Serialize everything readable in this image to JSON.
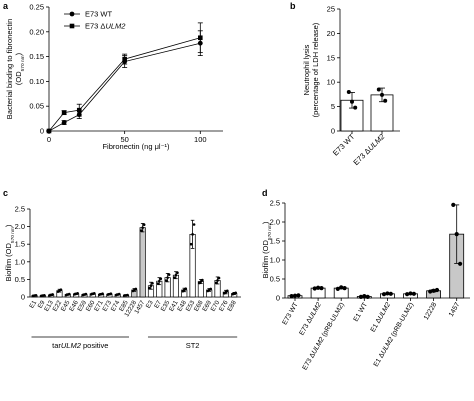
{
  "figure": {
    "panel_letters": [
      "a",
      "b",
      "c",
      "d"
    ]
  },
  "colors": {
    "ink": "#000000",
    "white_bar": "#ffffff",
    "grey_bar": "#c8c8c8"
  },
  "chart_data": [
    {
      "panel": "a",
      "type": "line",
      "xlabel": "Fibronectin (ng μl⁻¹)",
      "ylabel_line1": "Bacterial binding to fibronectin",
      "ylabel_line2": "(OD",
      "ylabel_sub": "570 nm",
      "ylabel_close": ")",
      "xlim": [
        0,
        115
      ],
      "ylim": [
        0,
        0.25
      ],
      "xticks": [
        0,
        50,
        100
      ],
      "yticks": [
        0,
        0.05,
        0.1,
        0.15,
        0.2,
        0.25
      ],
      "ytick_labels": [
        "0",
        "0.05",
        "0.10",
        "0.15",
        "0.20",
        "0.25"
      ],
      "legend_position": "top-left",
      "series": [
        {
          "name": "E73 WT",
          "marker": "circle",
          "x": [
            0,
            10,
            20,
            50,
            100
          ],
          "y": [
            0.0,
            0.017,
            0.033,
            0.14,
            0.177
          ],
          "err": [
            0.0,
            0.004,
            0.008,
            0.012,
            0.025
          ]
        },
        {
          "name": "E73 ΔULM2",
          "name_prefix": "E73 Δ",
          "name_italic": "ULM2",
          "marker": "square",
          "x": [
            0,
            10,
            20,
            50,
            100
          ],
          "y": [
            0.0,
            0.037,
            0.042,
            0.145,
            0.188
          ],
          "err": [
            0.0,
            0.004,
            0.012,
            0.01,
            0.03
          ]
        }
      ]
    },
    {
      "panel": "b",
      "type": "bar",
      "ylabel_line1": "Neutrophil lysis",
      "ylabel_line2": "(percentage of LDH release)",
      "ylim": [
        0,
        25
      ],
      "yticks": [
        0,
        5,
        10,
        15,
        20,
        25
      ],
      "categories": [
        {
          "label": "E73 WT",
          "prefix": "E73 WT",
          "italic": ""
        },
        {
          "label": "E73 ΔULM2",
          "prefix": "E73 Δ",
          "italic": "ULM2"
        }
      ],
      "values": [
        6.3,
        7.4
      ],
      "err": [
        1.6,
        1.4
      ],
      "points": [
        [
          8.0,
          6.0,
          4.8
        ],
        [
          8.5,
          7.4,
          6.2
        ]
      ]
    },
    {
      "panel": "c",
      "type": "bar",
      "ylabel": "Biofilm (OD",
      "ylabel_sub": "570 nm",
      "ylabel_close": ")",
      "ylim": [
        0,
        2.5
      ],
      "yticks": [
        0,
        0.5,
        1,
        1.5,
        2,
        2.5
      ],
      "ytick_labels": [
        "0",
        "0.5",
        "1.0",
        "1.5",
        "2.0",
        "2.5"
      ],
      "categories": [
        "E1",
        "E9",
        "E13",
        "E22",
        "E45",
        "E46",
        "E59",
        "E60",
        "E71",
        "E73",
        "E74",
        "E85",
        "12228",
        "1457",
        "E3",
        "E7",
        "E35",
        "E41",
        "E48",
        "E53",
        "E68",
        "E69",
        "E70",
        "E76",
        "E88"
      ],
      "values": [
        0.04,
        0.04,
        0.06,
        0.18,
        0.07,
        0.09,
        0.07,
        0.09,
        0.08,
        0.08,
        0.07,
        0.05,
        0.2,
        1.97,
        0.32,
        0.45,
        0.55,
        0.62,
        0.2,
        1.78,
        0.44,
        0.2,
        0.47,
        0.14,
        0.1
      ],
      "err": [
        0.01,
        0.01,
        0.02,
        0.04,
        0.02,
        0.02,
        0.02,
        0.02,
        0.02,
        0.02,
        0.02,
        0.01,
        0.04,
        0.12,
        0.1,
        0.1,
        0.12,
        0.1,
        0.05,
        0.4,
        0.06,
        0.04,
        0.1,
        0.05,
        0.03
      ],
      "grey_bars": [
        "12228",
        "1457"
      ],
      "groups": [
        {
          "label_prefix": "tar",
          "label_italic": "ULM2",
          "label_suffix": " positive",
          "from": 0,
          "to": 11
        },
        {
          "label_prefix": "ST2",
          "label_italic": "",
          "label_suffix": "",
          "from": 14,
          "to": 24
        }
      ]
    },
    {
      "panel": "d",
      "type": "bar",
      "ylabel": "Biofilm (OD",
      "ylabel_sub": "570 nm",
      "ylabel_close": ")",
      "ylim": [
        0,
        2.5
      ],
      "yticks": [
        0,
        0.5,
        1,
        1.5,
        2,
        2.5
      ],
      "ytick_labels": [
        "0",
        "0.5",
        "1.0",
        "1.5",
        "2.0",
        "2.5"
      ],
      "categories": [
        {
          "label": "E73 WT",
          "prefix": "E73 WT",
          "italic": "",
          "suffix": ""
        },
        {
          "label": "E73 ΔULM2",
          "prefix": "E73 Δ",
          "italic": "ULM2",
          "suffix": ""
        },
        {
          "label": "E73 ΔULM2 (pRB-ULM2)",
          "prefix": "E73 Δ",
          "italic": "ULM2",
          "suffix": " (pRB-ULM2)"
        },
        {
          "label": "E1 WT",
          "prefix": "E1 WT",
          "italic": "",
          "suffix": ""
        },
        {
          "label": "E1 ΔULM2",
          "prefix": "E1 Δ",
          "italic": "ULM2",
          "suffix": ""
        },
        {
          "label": "E1 ΔULM2 (pRB-ULM2)",
          "prefix": "E1 Δ",
          "italic": "ULM2",
          "suffix": " (pRB-ULM2)"
        },
        {
          "label": "12228",
          "prefix": "12228",
          "italic": "",
          "suffix": ""
        },
        {
          "label": "1457",
          "prefix": "1457",
          "italic": "",
          "suffix": ""
        }
      ],
      "values": [
        0.06,
        0.26,
        0.26,
        0.04,
        0.11,
        0.11,
        0.19,
        1.68
      ],
      "err": [
        0.01,
        0.02,
        0.02,
        0.01,
        0.01,
        0.01,
        0.03,
        0.77
      ],
      "points": [
        [
          0.05,
          0.06,
          0.07
        ],
        [
          0.25,
          0.27,
          0.26
        ],
        [
          0.24,
          0.28,
          0.26
        ],
        [
          0.03,
          0.05,
          0.03
        ],
        [
          0.1,
          0.12,
          0.11
        ],
        [
          0.1,
          0.12,
          0.11
        ],
        [
          0.17,
          0.19,
          0.21
        ],
        [
          2.45,
          1.68,
          0.9
        ]
      ],
      "grey_bars": [
        "12228",
        "1457"
      ]
    }
  ]
}
